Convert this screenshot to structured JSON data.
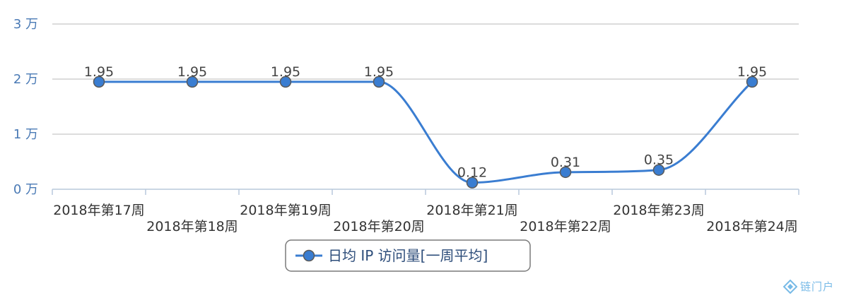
{
  "chart_data": {
    "type": "line",
    "categories": [
      "2018年第17周",
      "2018年第18周",
      "2018年第19周",
      "2018年第20周",
      "2018年第21周",
      "2018年第22周",
      "2018年第23周",
      "2018年第24周"
    ],
    "series": [
      {
        "name": "日均 IP 访问量[一周平均]",
        "values": [
          1.95,
          1.95,
          1.95,
          1.95,
          0.12,
          0.31,
          0.35,
          1.95
        ],
        "labels": [
          "1.95",
          "1.95",
          "1.95",
          "1.95",
          "0.12",
          "0.31",
          "0.35",
          "1.95"
        ]
      }
    ],
    "ylim": [
      0,
      3
    ],
    "yticks": [
      {
        "value": 0,
        "label": "0 万"
      },
      {
        "value": 1,
        "label": "1 万"
      },
      {
        "value": 2,
        "label": "2 万"
      },
      {
        "value": 3,
        "label": "3 万"
      }
    ],
    "grid": true,
    "legend_position": "bottom-center",
    "colors": {
      "series": "#3a7dd1",
      "marker_stroke": "#5a5a5a",
      "grid": "#b8b8b8",
      "axis": "#b8c8dc",
      "ytick": "#4a7ab5",
      "legend_border": "#7a7a7a"
    }
  },
  "watermark": {
    "text": "链门户",
    "icon": "diamond-logo-icon"
  }
}
